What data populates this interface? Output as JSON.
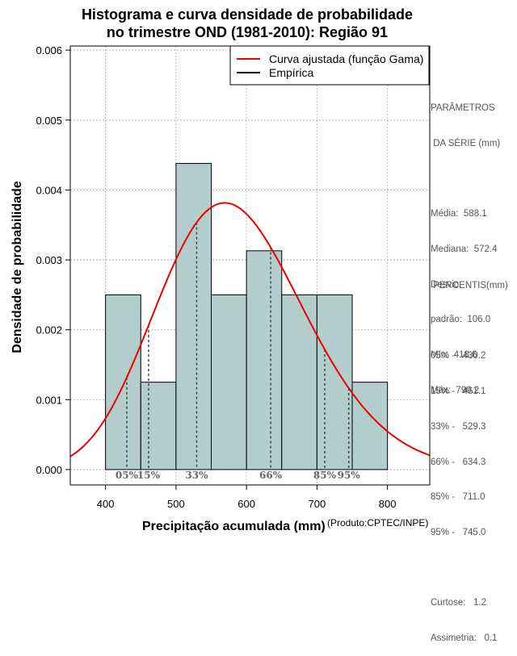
{
  "chart_data": {
    "type": "bar",
    "title": "Histograma e curva densidade de probabilidade",
    "subtitle": "no trimestre OND (1981-2010): Região 91",
    "xlabel": "Precipitação acumulada (mm)",
    "ylabel": "Densidade de probabilidade",
    "credit": "(Produto:CPTEC/INPE)",
    "xlim": [
      350,
      860
    ],
    "ylim": [
      -0.00022,
      0.00606
    ],
    "x_ticks": [
      400,
      500,
      600,
      700,
      800
    ],
    "y_ticks": [
      0.0,
      0.001,
      0.002,
      0.003,
      0.004,
      0.005,
      0.006
    ],
    "y_tick_labels": [
      "0.000",
      "0.001",
      "0.002",
      "0.003",
      "0.004",
      "0.005",
      "0.006"
    ],
    "grid": true,
    "bins": [
      {
        "start": 400,
        "end": 450,
        "density": 0.0025
      },
      {
        "start": 450,
        "end": 500,
        "density": 0.00125
      },
      {
        "start": 500,
        "end": 550,
        "density": 0.00438
      },
      {
        "start": 550,
        "end": 600,
        "density": 0.0025
      },
      {
        "start": 600,
        "end": 650,
        "density": 0.00313
      },
      {
        "start": 650,
        "end": 700,
        "density": 0.0025
      },
      {
        "start": 700,
        "end": 750,
        "density": 0.0025
      },
      {
        "start": 750,
        "end": 800,
        "density": 0.00125
      }
    ],
    "fitted_curve": {
      "name": "Curva ajustada (função Gama)",
      "distribution": "gamma",
      "mean": 588.1,
      "sd": 106.0,
      "color": "#ee0000"
    },
    "empirical": {
      "name": "Empírica",
      "color": "#000000"
    },
    "bar_color": "#b3cccc",
    "percentile_lines": [
      {
        "label": "05%",
        "value": 430.2
      },
      {
        "label": "15%",
        "value": 461.1
      },
      {
        "label": "33%",
        "value": 529.3
      },
      {
        "label": "66%",
        "value": 634.3
      },
      {
        "label": "85%",
        "value": 711.0
      },
      {
        "label": "95%",
        "value": 745.0
      }
    ],
    "legend_position": "top-right"
  },
  "side_panel": {
    "params_heading_1": "PARÂMETROS",
    "params_heading_2": " DA SÉRIE (mm)",
    "media": "Média:  588.1",
    "mediana": "Mediana:  572.4",
    "desvio_1": "Desvio",
    "desvio_2": "padrão:  106.0",
    "min": "Mín:  418.6",
    "max": "Máx:  790.2",
    "percentis_heading": " PERCENTIS(mm)",
    "p05": "05% -   430.2",
    "p15": "15% -   461.1",
    "p33": "33% -   529.3",
    "p66": "66% -   634.3",
    "p85": "85% -   711.0",
    "p95": "95% -   745.0",
    "curtose": "Curtose:   1.2",
    "assimetria": "Assimetria:   0.1"
  }
}
